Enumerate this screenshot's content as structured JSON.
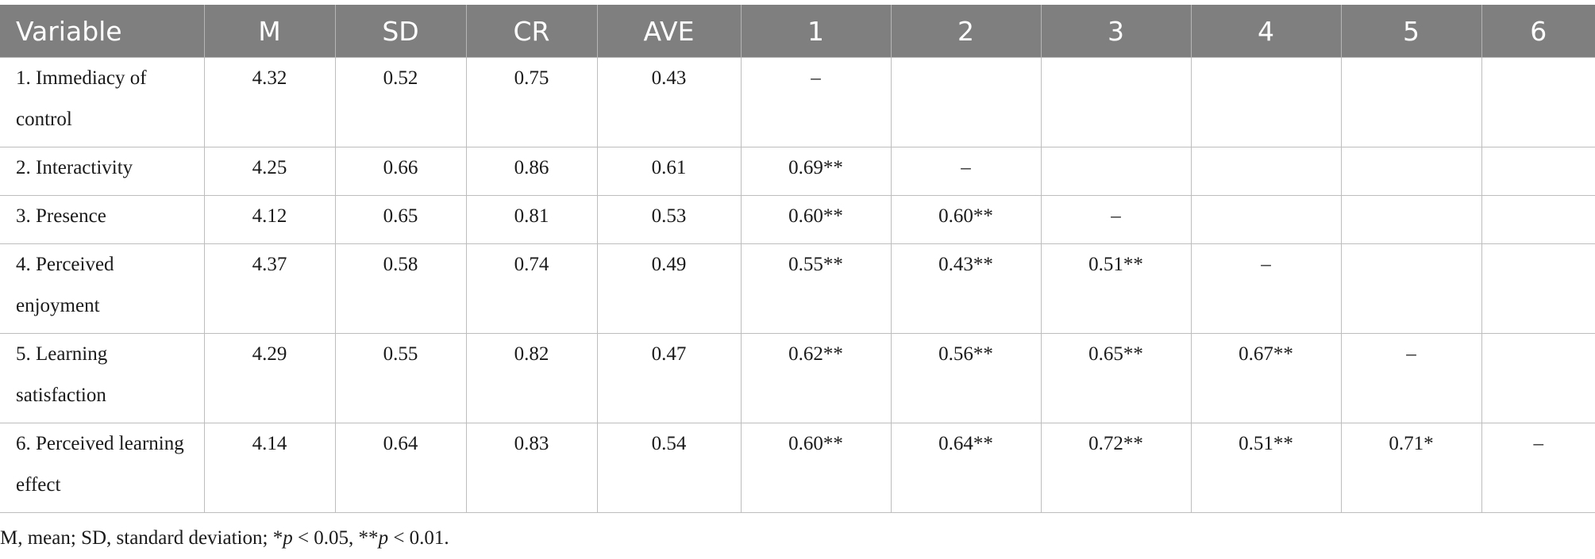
{
  "table": {
    "headers": [
      "Variable",
      "M",
      "SD",
      "CR",
      "AVE",
      "1",
      "2",
      "3",
      "4",
      "5",
      "6"
    ],
    "rows": [
      {
        "variable": "1. Immediacy of control",
        "M": "4.32",
        "SD": "0.52",
        "CR": "0.75",
        "AVE": "0.43",
        "c1": "–",
        "c2": "",
        "c3": "",
        "c4": "",
        "c5": "",
        "c6": ""
      },
      {
        "variable": "2. Interactivity",
        "M": "4.25",
        "SD": "0.66",
        "CR": "0.86",
        "AVE": "0.61",
        "c1": "0.69**",
        "c2": "–",
        "c3": "",
        "c4": "",
        "c5": "",
        "c6": ""
      },
      {
        "variable": "3. Presence",
        "M": "4.12",
        "SD": "0.65",
        "CR": "0.81",
        "AVE": "0.53",
        "c1": "0.60**",
        "c2": "0.60**",
        "c3": "–",
        "c4": "",
        "c5": "",
        "c6": ""
      },
      {
        "variable": "4. Perceived enjoyment",
        "M": "4.37",
        "SD": "0.58",
        "CR": "0.74",
        "AVE": "0.49",
        "c1": "0.55**",
        "c2": "0.43**",
        "c3": "0.51**",
        "c4": "–",
        "c5": "",
        "c6": ""
      },
      {
        "variable": "5. Learning satisfaction",
        "M": "4.29",
        "SD": "0.55",
        "CR": "0.82",
        "AVE": "0.47",
        "c1": "0.62**",
        "c2": "0.56**",
        "c3": "0.65**",
        "c4": "0.67**",
        "c5": "–",
        "c6": ""
      },
      {
        "variable": "6. Perceived learning effect",
        "M": "4.14",
        "SD": "0.64",
        "CR": "0.83",
        "AVE": "0.54",
        "c1": "0.60**",
        "c2": "0.64**",
        "c3": "0.72**",
        "c4": "0.51**",
        "c5": "0.71*",
        "c6": "–"
      }
    ]
  },
  "note": {
    "part1": "M, mean; SD, standard deviation; *",
    "p1": "p",
    "part2": " < 0.05, **",
    "p2": "p",
    "part3": " < 0.01."
  },
  "colors": {
    "header_bg": "#7f7f7f",
    "header_text": "#ffffff",
    "grid": "#bdbdbd",
    "body_text": "#1a1a1a"
  }
}
